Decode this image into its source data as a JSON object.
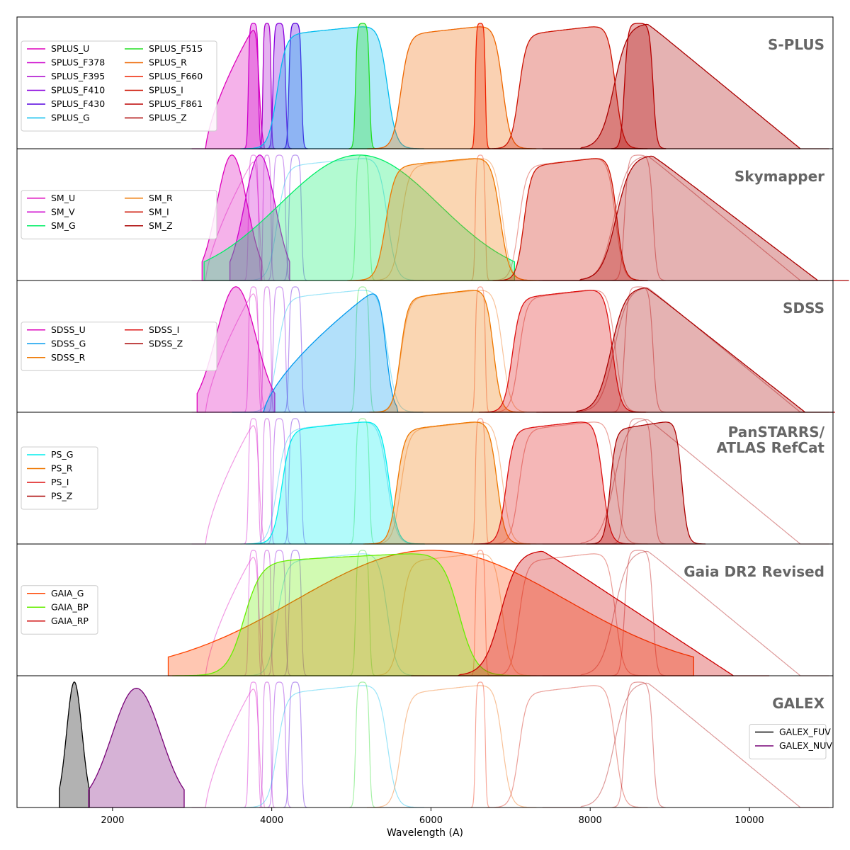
{
  "chart_data": {
    "type": "area",
    "xlabel": "Wavelength (A)",
    "xlim": [
      800,
      11050
    ],
    "ylim": [
      0,
      1.05
    ],
    "xticks": [
      2000,
      4000,
      6000,
      8000,
      10000
    ],
    "grid": false,
    "panels": [
      {
        "title": [
          "S-PLUS"
        ],
        "legend_position": "upper-left",
        "legend_columns": 2,
        "filters": [
          {
            "name": "SPLUS_U",
            "color": "#dd00bb",
            "shape": "rising",
            "center": 3520,
            "width": 700,
            "peak": 1.0
          },
          {
            "name": "SPLUS_F378",
            "color": "#cc00cc",
            "shape": "narrow",
            "center": 3770,
            "width": 160,
            "peak": 1.0
          },
          {
            "name": "SPLUS_F395",
            "color": "#aa00cc",
            "shape": "narrow",
            "center": 3940,
            "width": 130,
            "peak": 1.0
          },
          {
            "name": "SPLUS_F410",
            "color": "#8800dd",
            "shape": "narrow",
            "center": 4095,
            "width": 200,
            "peak": 1.0
          },
          {
            "name": "SPLUS_F430",
            "color": "#5500dd",
            "shape": "narrow",
            "center": 4295,
            "width": 200,
            "peak": 1.0
          },
          {
            "name": "SPLUS_G",
            "color": "#00bbee",
            "shape": "broad",
            "center": 4760,
            "width": 1540,
            "peak": 1.0
          },
          {
            "name": "SPLUS_F515",
            "color": "#22dd22",
            "shape": "narrow",
            "center": 5140,
            "width": 220,
            "peak": 1.0
          },
          {
            "name": "SPLUS_R",
            "color": "#ee6600",
            "shape": "broad",
            "center": 6260,
            "width": 1420,
            "peak": 1.0
          },
          {
            "name": "SPLUS_F660",
            "color": "#ee2200",
            "shape": "narrow",
            "center": 6620,
            "width": 160,
            "peak": 1.0
          },
          {
            "name": "SPLUS_I",
            "color": "#cc1100",
            "shape": "broad",
            "center": 7710,
            "width": 1350,
            "peak": 1.0
          },
          {
            "name": "SPLUS_F861",
            "color": "#bb0000",
            "shape": "narrow",
            "center": 8610,
            "width": 450,
            "peak": 1.0
          },
          {
            "name": "SPLUS_Z",
            "color": "#aa0000",
            "shape": "falling",
            "center": 9200,
            "width": 2400,
            "peak": 1.0
          }
        ]
      },
      {
        "title": [
          "Skymapper"
        ],
        "legend_position": "center-left",
        "legend_columns": 2,
        "filters": [
          {
            "name": "SM_U",
            "color": "#dd00bb",
            "shape": "gauss",
            "center": 3500,
            "width": 500,
            "peak": 1.0
          },
          {
            "name": "SM_V",
            "color": "#cc00cc",
            "shape": "gauss",
            "center": 3850,
            "width": 500,
            "peak": 1.0
          },
          {
            "name": "SM_G",
            "color": "#00ee66",
            "shape": "gauss",
            "center": 5100,
            "width": 2600,
            "peak": 1.0
          },
          {
            "name": "SM_R",
            "color": "#ee7700",
            "shape": "broad",
            "center": 6150,
            "width": 1600,
            "peak": 1.0
          },
          {
            "name": "SM_I",
            "color": "#cc1100",
            "shape": "broad",
            "center": 7750,
            "width": 1300,
            "peak": 1.0
          },
          {
            "name": "SM_Z",
            "color": "#aa0000",
            "shape": "falling",
            "center": 9300,
            "width": 2600,
            "peak": 1.0
          }
        ]
      },
      {
        "title": [
          "SDSS"
        ],
        "legend_position": "center-left",
        "legend_columns": 2,
        "filters": [
          {
            "name": "SDSS_U",
            "color": "#dd00bb",
            "shape": "gauss",
            "center": 3550,
            "width": 650,
            "peak": 1.0
          },
          {
            "name": "SDSS_G",
            "color": "#0099ee",
            "shape": "rising",
            "center": 4700,
            "width": 1600,
            "peak": 1.0
          },
          {
            "name": "SDSS_R",
            "color": "#ee7700",
            "shape": "broad",
            "center": 6200,
            "width": 1300,
            "peak": 1.0
          },
          {
            "name": "SDSS_I",
            "color": "#dd1111",
            "shape": "broad",
            "center": 7650,
            "width": 1400,
            "peak": 1.0
          },
          {
            "name": "SDSS_Z",
            "color": "#aa0000",
            "shape": "falling",
            "center": 9200,
            "width": 2500,
            "peak": 1.0
          }
        ]
      },
      {
        "title": [
          "PanSTARRS/",
          "ATLAS RefCat"
        ],
        "legend_position": "center-left",
        "legend_columns": 1,
        "filters": [
          {
            "name": "PS_G",
            "color": "#00eeee",
            "shape": "broad",
            "center": 4800,
            "width": 1500,
            "peak": 1.0
          },
          {
            "name": "PS_R",
            "color": "#ee7700",
            "shape": "broad",
            "center": 6200,
            "width": 1400,
            "peak": 1.0
          },
          {
            "name": "PS_I",
            "color": "#dd1111",
            "shape": "broad",
            "center": 7550,
            "width": 1350,
            "peak": 1.0
          },
          {
            "name": "PS_Z",
            "color": "#aa0000",
            "shape": "broad",
            "center": 8700,
            "width": 1000,
            "peak": 1.0
          }
        ]
      },
      {
        "title": [
          "Gaia DR2 Revised"
        ],
        "legend_position": "center-left",
        "legend_columns": 1,
        "filters": [
          {
            "name": "GAIA_G",
            "color": "#ff4400",
            "shape": "gauss",
            "center": 6000,
            "width": 4400,
            "peak": 1.0
          },
          {
            "name": "GAIA_BP",
            "color": "#66ee00",
            "shape": "broad",
            "center": 5000,
            "width": 3000,
            "peak": 1.0
          },
          {
            "name": "GAIA_RP",
            "color": "#cc0000",
            "shape": "falling",
            "center": 8000,
            "width": 3000,
            "peak": 1.0
          }
        ]
      },
      {
        "title": [
          "GALEX"
        ],
        "legend_position": "center-right",
        "legend_columns": 1,
        "filters": [
          {
            "name": "GALEX_FUV",
            "color": "#000000",
            "shape": "gauss",
            "center": 1520,
            "width": 250,
            "peak": 1.0
          },
          {
            "name": "GALEX_NUV",
            "color": "#770077",
            "shape": "gauss",
            "center": 2300,
            "width": 800,
            "peak": 0.95
          }
        ]
      }
    ]
  }
}
